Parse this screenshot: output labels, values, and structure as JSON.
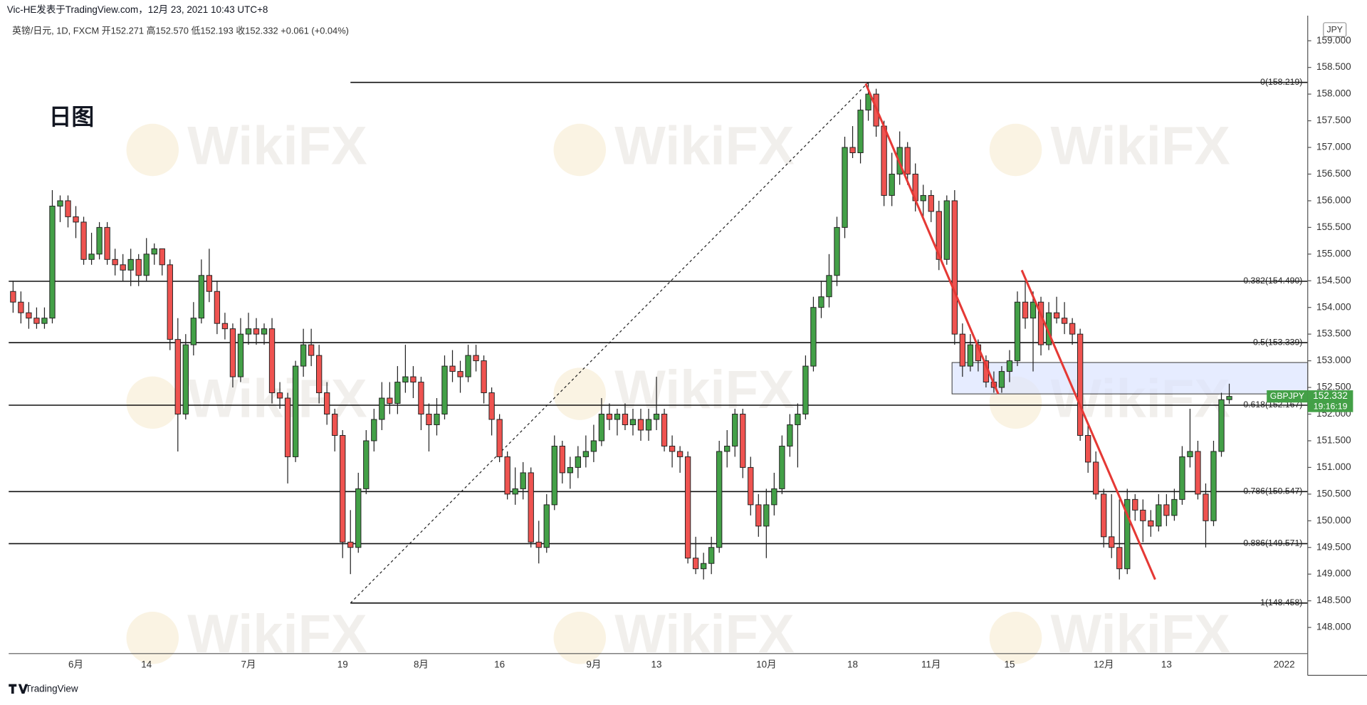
{
  "chart_data": {
    "type": "candlestick",
    "header": "Vic-HE发表于TradingView.com，12月 23, 2021 10:43 UTC+8",
    "legend": "英镑/日元, 1D, FXCM  开152.271  高152.570  低152.193  收152.332  +0.061 (+0.04%)",
    "annotation": "日图",
    "currency": "JPY",
    "symbol": "GBPJPY",
    "countdown": "19:16:19",
    "brand": "TradingView",
    "watermark": "WikiFX",
    "up_color": "#43a047",
    "down_color": "#ef5350",
    "grid": false,
    "ylim": [
      147.51,
      159.47
    ],
    "yticks": [
      {
        "value": 159,
        "label": "159.000"
      },
      {
        "value": 158.5,
        "label": "158.500"
      },
      {
        "value": 158,
        "label": "158.000"
      },
      {
        "value": 157.5,
        "label": "157.500"
      },
      {
        "value": 157,
        "label": "157.000"
      },
      {
        "value": 156.5,
        "label": "156.500"
      },
      {
        "value": 156,
        "label": "156.000"
      },
      {
        "value": 155.5,
        "label": "155.500"
      },
      {
        "value": 155,
        "label": "155.000"
      },
      {
        "value": 154.5,
        "label": "154.500"
      },
      {
        "value": 154,
        "label": "154.000"
      },
      {
        "value": 153.5,
        "label": "153.500"
      },
      {
        "value": 153,
        "label": "153.000"
      },
      {
        "value": 152.5,
        "label": "152.500"
      },
      {
        "value": 152,
        "label": "152.000"
      },
      {
        "value": 151.5,
        "label": "151.500"
      },
      {
        "value": 151,
        "label": "151.000"
      },
      {
        "value": 150.5,
        "label": "150.500"
      },
      {
        "value": 150,
        "label": "150.000"
      },
      {
        "value": 149.5,
        "label": "149.500"
      },
      {
        "value": 149,
        "label": "149.000"
      },
      {
        "value": 148.5,
        "label": "148.500"
      },
      {
        "value": 148,
        "label": "148.000"
      }
    ],
    "fib_levels": [
      {
        "label": "0(158.219)",
        "value": 158.219
      },
      {
        "label": "0.382(154.490)",
        "value": 154.49
      },
      {
        "label": "0.5(153.339)",
        "value": 153.339
      },
      {
        "label": "0.618(152.167)",
        "value": 152.167
      },
      {
        "label": "0.786(150.547)",
        "value": 150.547
      },
      {
        "label": "0.886(149.571)",
        "value": 149.571
      },
      {
        "label": "1(148.458)",
        "value": 148.458
      }
    ],
    "categories": [
      null,
      null,
      null,
      null,
      null,
      null,
      null,
      null,
      "6月",
      null,
      null,
      null,
      null,
      null,
      null,
      null,
      null,
      "14",
      null,
      null,
      null,
      null,
      null,
      null,
      null,
      null,
      null,
      null,
      null,
      null,
      "7月",
      null,
      null,
      null,
      null,
      null,
      null,
      null,
      null,
      null,
      null,
      null,
      "19",
      null,
      null,
      null,
      null,
      null,
      null,
      null,
      null,
      null,
      "8月",
      null,
      null,
      null,
      null,
      null,
      null,
      null,
      null,
      null,
      "16",
      null,
      null,
      null,
      null,
      null,
      null,
      null,
      null,
      null,
      null,
      null,
      "9月",
      null,
      null,
      null,
      null,
      null,
      null,
      null,
      "13",
      null,
      null,
      null,
      null,
      null,
      null,
      null,
      null,
      null,
      null,
      null,
      null,
      null,
      "10月",
      null,
      null,
      null,
      null,
      null,
      null,
      null,
      null,
      null,
      null,
      "18",
      null,
      null,
      null,
      null,
      null,
      null,
      null,
      null,
      null,
      "11月",
      null,
      null,
      null,
      null,
      null,
      null,
      null,
      null,
      null,
      "15",
      null,
      null,
      null,
      null,
      null,
      null,
      null,
      null,
      null,
      null,
      null,
      "12月",
      null,
      null,
      null,
      null,
      null,
      null,
      null,
      "13",
      null,
      null,
      null,
      null,
      null,
      null,
      null,
      null,
      null,
      null,
      null,
      null,
      null,
      null,
      "2022"
    ],
    "ohlc": [
      [
        154.3,
        154.5,
        153.9,
        154.1
      ],
      [
        154.1,
        154.3,
        153.7,
        153.9
      ],
      [
        153.9,
        154.1,
        153.6,
        153.8
      ],
      [
        153.8,
        154.0,
        153.6,
        153.7
      ],
      [
        153.7,
        154.0,
        153.6,
        153.8
      ],
      [
        153.8,
        156.2,
        153.7,
        155.9
      ],
      [
        155.9,
        156.1,
        155.6,
        156.0
      ],
      [
        156.0,
        156.1,
        155.5,
        155.7
      ],
      [
        155.7,
        155.9,
        155.3,
        155.6
      ],
      [
        155.6,
        155.7,
        154.8,
        154.9
      ],
      [
        154.9,
        155.4,
        154.8,
        155.0
      ],
      [
        155.0,
        155.6,
        154.9,
        155.5
      ],
      [
        155.5,
        155.6,
        154.8,
        154.9
      ],
      [
        154.9,
        155.1,
        154.6,
        154.8
      ],
      [
        154.8,
        155.0,
        154.5,
        154.7
      ],
      [
        154.7,
        155.1,
        154.4,
        154.9
      ],
      [
        154.9,
        155.0,
        154.4,
        154.6
      ],
      [
        154.6,
        155.3,
        154.5,
        155.0
      ],
      [
        155.0,
        155.2,
        154.8,
        155.1
      ],
      [
        155.1,
        155.1,
        154.6,
        154.8
      ],
      [
        154.8,
        154.9,
        153.2,
        153.4
      ],
      [
        153.4,
        153.8,
        151.3,
        152.0
      ],
      [
        152.0,
        153.5,
        151.9,
        153.3
      ],
      [
        153.3,
        154.1,
        153.1,
        153.8
      ],
      [
        153.8,
        154.9,
        153.7,
        154.6
      ],
      [
        154.6,
        155.1,
        154.1,
        154.3
      ],
      [
        154.3,
        154.5,
        153.5,
        153.7
      ],
      [
        153.7,
        153.9,
        153.4,
        153.6
      ],
      [
        153.6,
        153.7,
        152.5,
        152.7
      ],
      [
        152.7,
        153.8,
        152.6,
        153.5
      ],
      [
        153.5,
        153.9,
        153.3,
        153.6
      ],
      [
        153.6,
        153.8,
        153.3,
        153.5
      ],
      [
        153.5,
        153.7,
        153.3,
        153.6
      ],
      [
        153.6,
        153.8,
        152.2,
        152.4
      ],
      [
        152.4,
        152.6,
        152.1,
        152.3
      ],
      [
        152.3,
        152.4,
        150.7,
        151.2
      ],
      [
        151.2,
        153.0,
        151.1,
        152.9
      ],
      [
        152.9,
        153.6,
        152.7,
        153.3
      ],
      [
        153.3,
        153.6,
        152.9,
        153.1
      ],
      [
        153.1,
        153.3,
        152.2,
        152.4
      ],
      [
        152.4,
        152.6,
        151.8,
        152.0
      ],
      [
        152.0,
        152.1,
        151.3,
        151.6
      ],
      [
        151.6,
        151.7,
        149.3,
        149.6
      ],
      [
        149.6,
        150.2,
        149.0,
        149.5
      ],
      [
        149.5,
        150.9,
        149.4,
        150.6
      ],
      [
        150.6,
        151.7,
        150.5,
        151.5
      ],
      [
        151.5,
        152.1,
        151.3,
        151.9
      ],
      [
        151.9,
        152.6,
        151.7,
        152.3
      ],
      [
        152.3,
        152.6,
        152.0,
        152.2
      ],
      [
        152.2,
        152.9,
        152.0,
        152.6
      ],
      [
        152.6,
        153.3,
        152.4,
        152.7
      ],
      [
        152.7,
        152.9,
        152.3,
        152.6
      ],
      [
        152.6,
        152.7,
        151.7,
        152.0
      ],
      [
        152.0,
        152.2,
        151.3,
        151.8
      ],
      [
        151.8,
        152.3,
        151.6,
        152.0
      ],
      [
        152.0,
        153.1,
        151.9,
        152.9
      ],
      [
        152.9,
        153.2,
        152.6,
        152.8
      ],
      [
        152.8,
        153.0,
        152.4,
        152.7
      ],
      [
        152.7,
        153.3,
        152.6,
        153.1
      ],
      [
        153.1,
        153.3,
        152.8,
        153.0
      ],
      [
        153.0,
        153.1,
        152.2,
        152.4
      ],
      [
        152.4,
        152.5,
        151.6,
        151.9
      ],
      [
        151.9,
        152.0,
        151.1,
        151.2
      ],
      [
        151.2,
        151.3,
        150.4,
        150.5
      ],
      [
        150.5,
        151.0,
        150.3,
        150.6
      ],
      [
        150.6,
        151.1,
        150.4,
        150.9
      ],
      [
        150.9,
        151.0,
        149.5,
        149.6
      ],
      [
        149.6,
        150.0,
        149.2,
        149.5
      ],
      [
        149.5,
        150.5,
        149.4,
        150.3
      ],
      [
        150.3,
        151.6,
        150.2,
        151.4
      ],
      [
        151.4,
        151.5,
        150.7,
        150.9
      ],
      [
        150.9,
        151.2,
        150.6,
        151.0
      ],
      [
        151.0,
        151.4,
        150.8,
        151.2
      ],
      [
        151.2,
        151.6,
        151.0,
        151.3
      ],
      [
        151.3,
        151.8,
        151.1,
        151.5
      ],
      [
        151.5,
        152.3,
        151.4,
        152.0
      ],
      [
        152.0,
        152.2,
        151.7,
        151.9
      ],
      [
        151.9,
        152.1,
        151.6,
        152.0
      ],
      [
        152.0,
        152.2,
        151.7,
        151.8
      ],
      [
        151.8,
        152.1,
        151.6,
        151.9
      ],
      [
        151.9,
        152.1,
        151.5,
        151.7
      ],
      [
        151.7,
        152.1,
        151.5,
        151.9
      ],
      [
        151.9,
        152.7,
        151.7,
        152.0
      ],
      [
        152.0,
        152.1,
        151.3,
        151.4
      ],
      [
        151.4,
        151.6,
        151.0,
        151.3
      ],
      [
        151.3,
        151.4,
        150.9,
        151.2
      ],
      [
        151.2,
        151.3,
        149.2,
        149.3
      ],
      [
        149.3,
        149.7,
        149.0,
        149.1
      ],
      [
        149.1,
        149.4,
        148.9,
        149.2
      ],
      [
        149.2,
        149.7,
        149.0,
        149.5
      ],
      [
        149.5,
        151.5,
        149.4,
        151.3
      ],
      [
        151.3,
        151.7,
        151.0,
        151.4
      ],
      [
        151.4,
        152.1,
        151.2,
        152.0
      ],
      [
        152.0,
        152.1,
        150.8,
        151.0
      ],
      [
        151.0,
        151.2,
        150.1,
        150.3
      ],
      [
        150.3,
        150.5,
        149.7,
        149.9
      ],
      [
        149.9,
        150.6,
        149.3,
        150.3
      ],
      [
        150.3,
        150.9,
        150.1,
        150.6
      ],
      [
        150.6,
        151.6,
        150.5,
        151.4
      ],
      [
        151.4,
        152.0,
        151.2,
        151.8
      ],
      [
        151.8,
        152.2,
        151.0,
        152.0
      ],
      [
        152.0,
        153.1,
        151.9,
        152.9
      ],
      [
        152.9,
        154.2,
        152.8,
        154.0
      ],
      [
        154.0,
        154.5,
        153.8,
        154.2
      ],
      [
        154.2,
        155.0,
        154.0,
        154.6
      ],
      [
        154.6,
        155.7,
        154.4,
        155.5
      ],
      [
        155.5,
        157.2,
        155.3,
        157.0
      ],
      [
        157.0,
        157.4,
        156.8,
        156.9
      ],
      [
        156.9,
        157.9,
        156.7,
        157.7
      ],
      [
        157.7,
        158.22,
        157.5,
        158.0
      ],
      [
        158.0,
        158.1,
        157.2,
        157.4
      ],
      [
        157.4,
        157.5,
        155.9,
        156.1
      ],
      [
        156.1,
        156.9,
        155.9,
        156.5
      ],
      [
        156.5,
        157.3,
        156.3,
        157.0
      ],
      [
        157.0,
        157.1,
        156.3,
        156.5
      ],
      [
        156.5,
        156.7,
        155.8,
        156.0
      ],
      [
        156.0,
        156.3,
        155.7,
        156.1
      ],
      [
        156.1,
        156.2,
        155.6,
        155.8
      ],
      [
        155.8,
        156.0,
        154.7,
        154.9
      ],
      [
        154.9,
        156.1,
        154.8,
        156.0
      ],
      [
        156.0,
        156.2,
        153.3,
        153.5
      ],
      [
        153.5,
        153.7,
        152.7,
        152.9
      ],
      [
        152.9,
        153.5,
        152.8,
        153.3
      ],
      [
        153.3,
        153.4,
        152.8,
        153.0
      ],
      [
        153.0,
        153.1,
        152.5,
        152.6
      ],
      [
        152.6,
        152.8,
        152.4,
        152.5
      ],
      [
        152.5,
        152.9,
        152.4,
        152.8
      ],
      [
        152.8,
        153.2,
        152.6,
        153.0
      ],
      [
        153.0,
        154.3,
        152.9,
        154.1
      ],
      [
        154.1,
        154.5,
        153.6,
        153.8
      ],
      [
        153.8,
        154.3,
        152.8,
        154.1
      ],
      [
        154.1,
        154.2,
        153.1,
        153.3
      ],
      [
        153.3,
        154.1,
        153.2,
        153.9
      ],
      [
        153.9,
        154.2,
        153.7,
        153.8
      ],
      [
        153.8,
        154.1,
        153.5,
        153.7
      ],
      [
        153.7,
        153.8,
        153.3,
        153.5
      ],
      [
        153.5,
        153.6,
        151.5,
        151.6
      ],
      [
        151.6,
        151.8,
        150.9,
        151.1
      ],
      [
        151.1,
        151.3,
        150.4,
        150.5
      ],
      [
        150.5,
        150.6,
        149.5,
        149.7
      ],
      [
        149.7,
        150.5,
        149.3,
        149.5
      ],
      [
        149.5,
        150.4,
        148.9,
        149.1
      ],
      [
        149.1,
        150.6,
        149.0,
        150.4
      ],
      [
        150.4,
        150.5,
        150.0,
        150.2
      ],
      [
        150.2,
        150.4,
        149.6,
        150.0
      ],
      [
        150.0,
        150.2,
        149.7,
        149.9
      ],
      [
        149.9,
        150.5,
        149.8,
        150.3
      ],
      [
        150.3,
        150.5,
        149.9,
        150.1
      ],
      [
        150.1,
        150.6,
        150.0,
        150.4
      ],
      [
        150.4,
        151.4,
        150.3,
        151.2
      ],
      [
        151.2,
        152.1,
        151.0,
        151.3
      ],
      [
        151.3,
        151.5,
        150.4,
        150.5
      ],
      [
        150.5,
        150.7,
        149.5,
        150.0
      ],
      [
        150.0,
        151.5,
        149.9,
        151.3
      ],
      [
        151.3,
        152.4,
        151.2,
        152.27
      ],
      [
        152.271,
        152.57,
        152.193,
        152.332
      ],
      null,
      null,
      null,
      null,
      null,
      null,
      null
    ]
  }
}
